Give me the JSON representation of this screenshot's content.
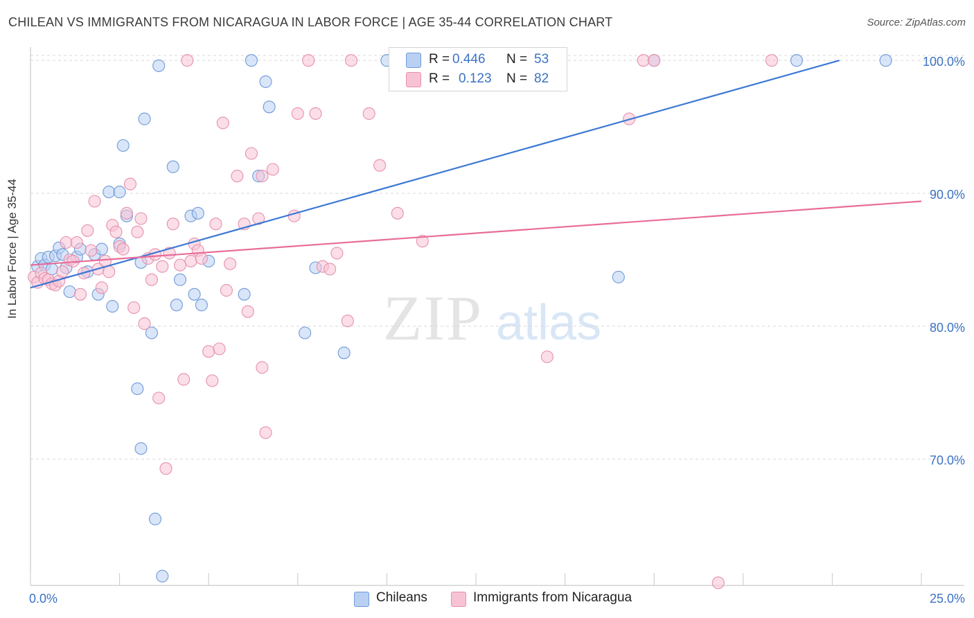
{
  "header": {
    "title": "CHILEAN VS IMMIGRANTS FROM NICARAGUA IN LABOR FORCE | AGE 35-44 CORRELATION CHART",
    "source": "Source: ZipAtlas.com"
  },
  "watermark": {
    "zip": "ZIP",
    "atlas": "atlas"
  },
  "colors": {
    "blue": "#3b78d4",
    "blue_fill": "#b9d0f2",
    "pink": "#e86c9a",
    "pink_fill": "#f7c3d4",
    "value_text": "#3b72c4",
    "grid": "#d8d8d8"
  },
  "legend": {
    "rows": [
      {
        "r_label": "R =",
        "r_value": "0.446",
        "n_label": "N =",
        "n_value": "53"
      },
      {
        "r_label": "R =",
        "r_value": "0.123",
        "n_label": "N =",
        "n_value": "82"
      }
    ]
  },
  "bottom_legend": {
    "items": [
      {
        "label": "Chileans"
      },
      {
        "label": "Immigrants from Nicaragua"
      }
    ]
  },
  "chart_data": {
    "type": "scatter",
    "title": "CHILEAN VS IMMIGRANTS FROM NICARAGUA IN LABOR FORCE | AGE 35-44 CORRELATION CHART",
    "xlabel": "",
    "ylabel": "In Labor Force | Age 35-44",
    "xlim": [
      0,
      25
    ],
    "ylim": [
      60.5,
      101
    ],
    "x_tick_labels": [
      {
        "value": 0,
        "label": "0.0%"
      },
      {
        "value": 25,
        "label": "25.0%"
      }
    ],
    "y_tick_labels": [
      {
        "value": 100,
        "label": "100.0%"
      },
      {
        "value": 90,
        "label": "90.0%"
      },
      {
        "value": 80,
        "label": "80.0%"
      },
      {
        "value": 70,
        "label": "70.0%"
      }
    ],
    "grid": true,
    "legend_position": "top-center",
    "series": [
      {
        "name": "Chileans",
        "color": "#3b78d4",
        "trend": {
          "x": [
            0,
            22.7
          ],
          "y": [
            82.9,
            100.0
          ]
        },
        "points": [
          [
            0.2,
            84.5
          ],
          [
            0.3,
            85.1
          ],
          [
            0.4,
            84.6
          ],
          [
            0.5,
            85.2
          ],
          [
            0.6,
            84.3
          ],
          [
            0.7,
            85.3
          ],
          [
            0.8,
            85.9
          ],
          [
            0.9,
            85.4
          ],
          [
            1.0,
            84.4
          ],
          [
            1.1,
            82.6
          ],
          [
            1.3,
            85.2
          ],
          [
            1.4,
            85.8
          ],
          [
            1.6,
            84.1
          ],
          [
            1.8,
            85.4
          ],
          [
            1.9,
            82.4
          ],
          [
            2.0,
            85.8
          ],
          [
            2.2,
            90.1
          ],
          [
            2.3,
            81.5
          ],
          [
            2.5,
            86.2
          ],
          [
            2.5,
            90.1
          ],
          [
            2.6,
            93.6
          ],
          [
            2.7,
            88.3
          ],
          [
            3.0,
            75.3
          ],
          [
            3.1,
            84.8
          ],
          [
            3.1,
            70.8
          ],
          [
            3.2,
            95.6
          ],
          [
            3.4,
            79.5
          ],
          [
            3.5,
            65.5
          ],
          [
            3.6,
            99.6
          ],
          [
            3.7,
            61.2
          ],
          [
            4.0,
            92.0
          ],
          [
            4.1,
            81.6
          ],
          [
            4.2,
            83.5
          ],
          [
            4.5,
            88.3
          ],
          [
            4.6,
            82.4
          ],
          [
            4.7,
            88.5
          ],
          [
            4.8,
            81.6
          ],
          [
            5.0,
            84.9
          ],
          [
            6.0,
            82.4
          ],
          [
            6.2,
            100.0
          ],
          [
            6.4,
            91.3
          ],
          [
            6.6,
            98.4
          ],
          [
            6.7,
            96.5
          ],
          [
            7.7,
            79.5
          ],
          [
            8.0,
            84.4
          ],
          [
            8.8,
            78.0
          ],
          [
            10.0,
            100.0
          ],
          [
            12.0,
            100.0
          ],
          [
            12.3,
            100.0
          ],
          [
            16.5,
            83.7
          ],
          [
            17.5,
            100.0
          ],
          [
            21.5,
            100.0
          ],
          [
            24.0,
            100.0
          ]
        ]
      },
      {
        "name": "Immigrants from Nicaragua",
        "color": "#e86c9a",
        "trend": {
          "x": [
            0,
            25
          ],
          "y": [
            84.6,
            89.4
          ]
        },
        "points": [
          [
            0.1,
            83.7
          ],
          [
            0.2,
            83.3
          ],
          [
            0.3,
            84.0
          ],
          [
            0.4,
            83.6
          ],
          [
            0.5,
            83.5
          ],
          [
            0.6,
            83.2
          ],
          [
            0.7,
            83.1
          ],
          [
            0.8,
            83.4
          ],
          [
            0.9,
            84.1
          ],
          [
            1.0,
            86.3
          ],
          [
            1.1,
            85.0
          ],
          [
            1.2,
            84.9
          ],
          [
            1.3,
            86.3
          ],
          [
            1.4,
            82.4
          ],
          [
            1.5,
            84.0
          ],
          [
            1.6,
            87.2
          ],
          [
            1.7,
            85.7
          ],
          [
            1.8,
            89.4
          ],
          [
            1.9,
            84.3
          ],
          [
            2.0,
            82.9
          ],
          [
            2.1,
            84.9
          ],
          [
            2.2,
            84.1
          ],
          [
            2.3,
            87.6
          ],
          [
            2.4,
            87.1
          ],
          [
            2.5,
            86.0
          ],
          [
            2.6,
            85.8
          ],
          [
            2.7,
            88.5
          ],
          [
            2.8,
            90.7
          ],
          [
            2.9,
            81.4
          ],
          [
            3.0,
            87.1
          ],
          [
            3.1,
            88.1
          ],
          [
            3.2,
            80.2
          ],
          [
            3.3,
            85.1
          ],
          [
            3.4,
            83.5
          ],
          [
            3.5,
            85.4
          ],
          [
            3.6,
            74.6
          ],
          [
            3.7,
            84.5
          ],
          [
            3.8,
            69.3
          ],
          [
            3.9,
            85.5
          ],
          [
            4.0,
            87.7
          ],
          [
            4.2,
            84.6
          ],
          [
            4.3,
            76.0
          ],
          [
            4.5,
            84.9
          ],
          [
            4.6,
            86.2
          ],
          [
            4.7,
            85.7
          ],
          [
            4.8,
            85.1
          ],
          [
            5.0,
            78.1
          ],
          [
            5.1,
            75.9
          ],
          [
            5.2,
            87.7
          ],
          [
            5.3,
            78.3
          ],
          [
            5.4,
            95.3
          ],
          [
            5.5,
            82.7
          ],
          [
            5.6,
            84.7
          ],
          [
            5.8,
            91.3
          ],
          [
            6.0,
            87.7
          ],
          [
            6.1,
            81.1
          ],
          [
            6.2,
            93.0
          ],
          [
            6.4,
            88.1
          ],
          [
            6.5,
            76.9
          ],
          [
            6.5,
            91.3
          ],
          [
            6.6,
            72.0
          ],
          [
            6.8,
            91.8
          ],
          [
            7.4,
            88.3
          ],
          [
            7.5,
            96.0
          ],
          [
            7.8,
            100.0
          ],
          [
            8.0,
            96.0
          ],
          [
            8.2,
            84.5
          ],
          [
            8.4,
            84.3
          ],
          [
            8.6,
            85.5
          ],
          [
            8.9,
            80.4
          ],
          [
            9.5,
            96.0
          ],
          [
            9.8,
            92.1
          ],
          [
            10.3,
            88.5
          ],
          [
            11.0,
            86.4
          ],
          [
            14.5,
            77.7
          ],
          [
            16.8,
            95.6
          ],
          [
            17.2,
            100.0
          ],
          [
            17.5,
            100.0
          ],
          [
            19.3,
            60.7
          ],
          [
            20.8,
            100.0
          ],
          [
            4.4,
            100.0
          ],
          [
            9.0,
            100.0
          ]
        ]
      }
    ]
  }
}
